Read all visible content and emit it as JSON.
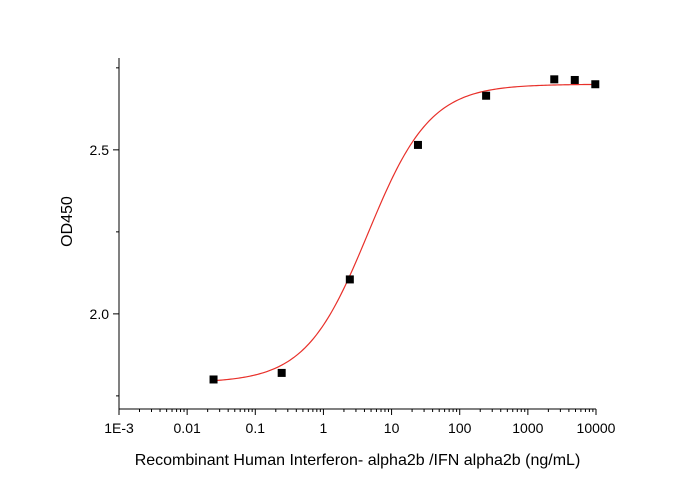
{
  "chart_data": {
    "type": "scatter",
    "title": "",
    "xlabel": "Recombinant Human Interferon- alpha2b /IFN alpha2b (ng/mL)",
    "ylabel": "OD450",
    "x_scale": "log",
    "xlim": [
      0.001,
      10000
    ],
    "ylim": [
      1.71,
      2.78
    ],
    "x_ticks": [
      "1E-3",
      "0.01",
      "0.1",
      "1",
      "10",
      "100",
      "1000",
      "10000"
    ],
    "y_ticks": [
      "2.0",
      "2.5"
    ],
    "grid": false,
    "legend": "none",
    "series": [
      {
        "kind": "points",
        "color": "#000000",
        "marker": "square",
        "x": [
          0.0244,
          0.244,
          2.44,
          24.4,
          244,
          2441,
          4883,
          9766
        ],
        "y": [
          1.8,
          1.82,
          2.105,
          2.515,
          2.665,
          2.715,
          2.713,
          2.7
        ]
      },
      {
        "kind": "fit",
        "color": "#e8302a",
        "model": "4PL",
        "bottom": 1.79,
        "top": 2.7,
        "ec50": 4.5,
        "hill": 0.95,
        "x_range": [
          0.0244,
          9766
        ]
      }
    ]
  }
}
